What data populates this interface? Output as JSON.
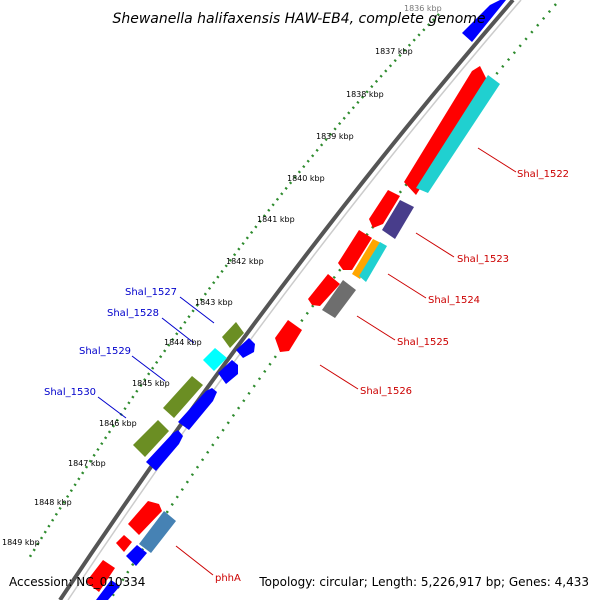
{
  "title": "Shewanella halifaxensis HAW-EB4, complete genome",
  "footer": {
    "accession": "Accession: NC_010334",
    "topology": "Topology: circular; Length: 5,226,917 bp; Genes: 4,433"
  },
  "colors": {
    "background": "#ffffff",
    "backbone": "#555555",
    "tick": "#2e8b2e",
    "forward_label": "#0000cc",
    "reverse_label": "#cc0000",
    "red": "#ff0000",
    "cyan": "#20d0d0",
    "bright_cyan": "#00ffff",
    "blue": "#0000ff",
    "olive": "#6b8e23",
    "purple": "#483d8b",
    "orange": "#ffa500",
    "gray": "#6e6e6e",
    "steelblue": "#4682b4"
  },
  "kbp_labels": [
    "1836 kbp",
    "1837 kbp",
    "1838 kbp",
    "1839 kbp",
    "1840 kbp",
    "1841 kbp",
    "1842 kbp",
    "1843 kbp",
    "1844 kbp",
    "1845 kbp",
    "1846 kbp",
    "1847 kbp",
    "1848 kbp",
    "1849 kbp"
  ],
  "gene_labels_right": [
    "Shal_1522",
    "Shal_1523",
    "Shal_1524",
    "Shal_1525",
    "Shal_1526",
    "phhA"
  ],
  "gene_labels_left": [
    "Shal_1527",
    "Shal_1528",
    "Shal_1529",
    "Shal_1530"
  ]
}
